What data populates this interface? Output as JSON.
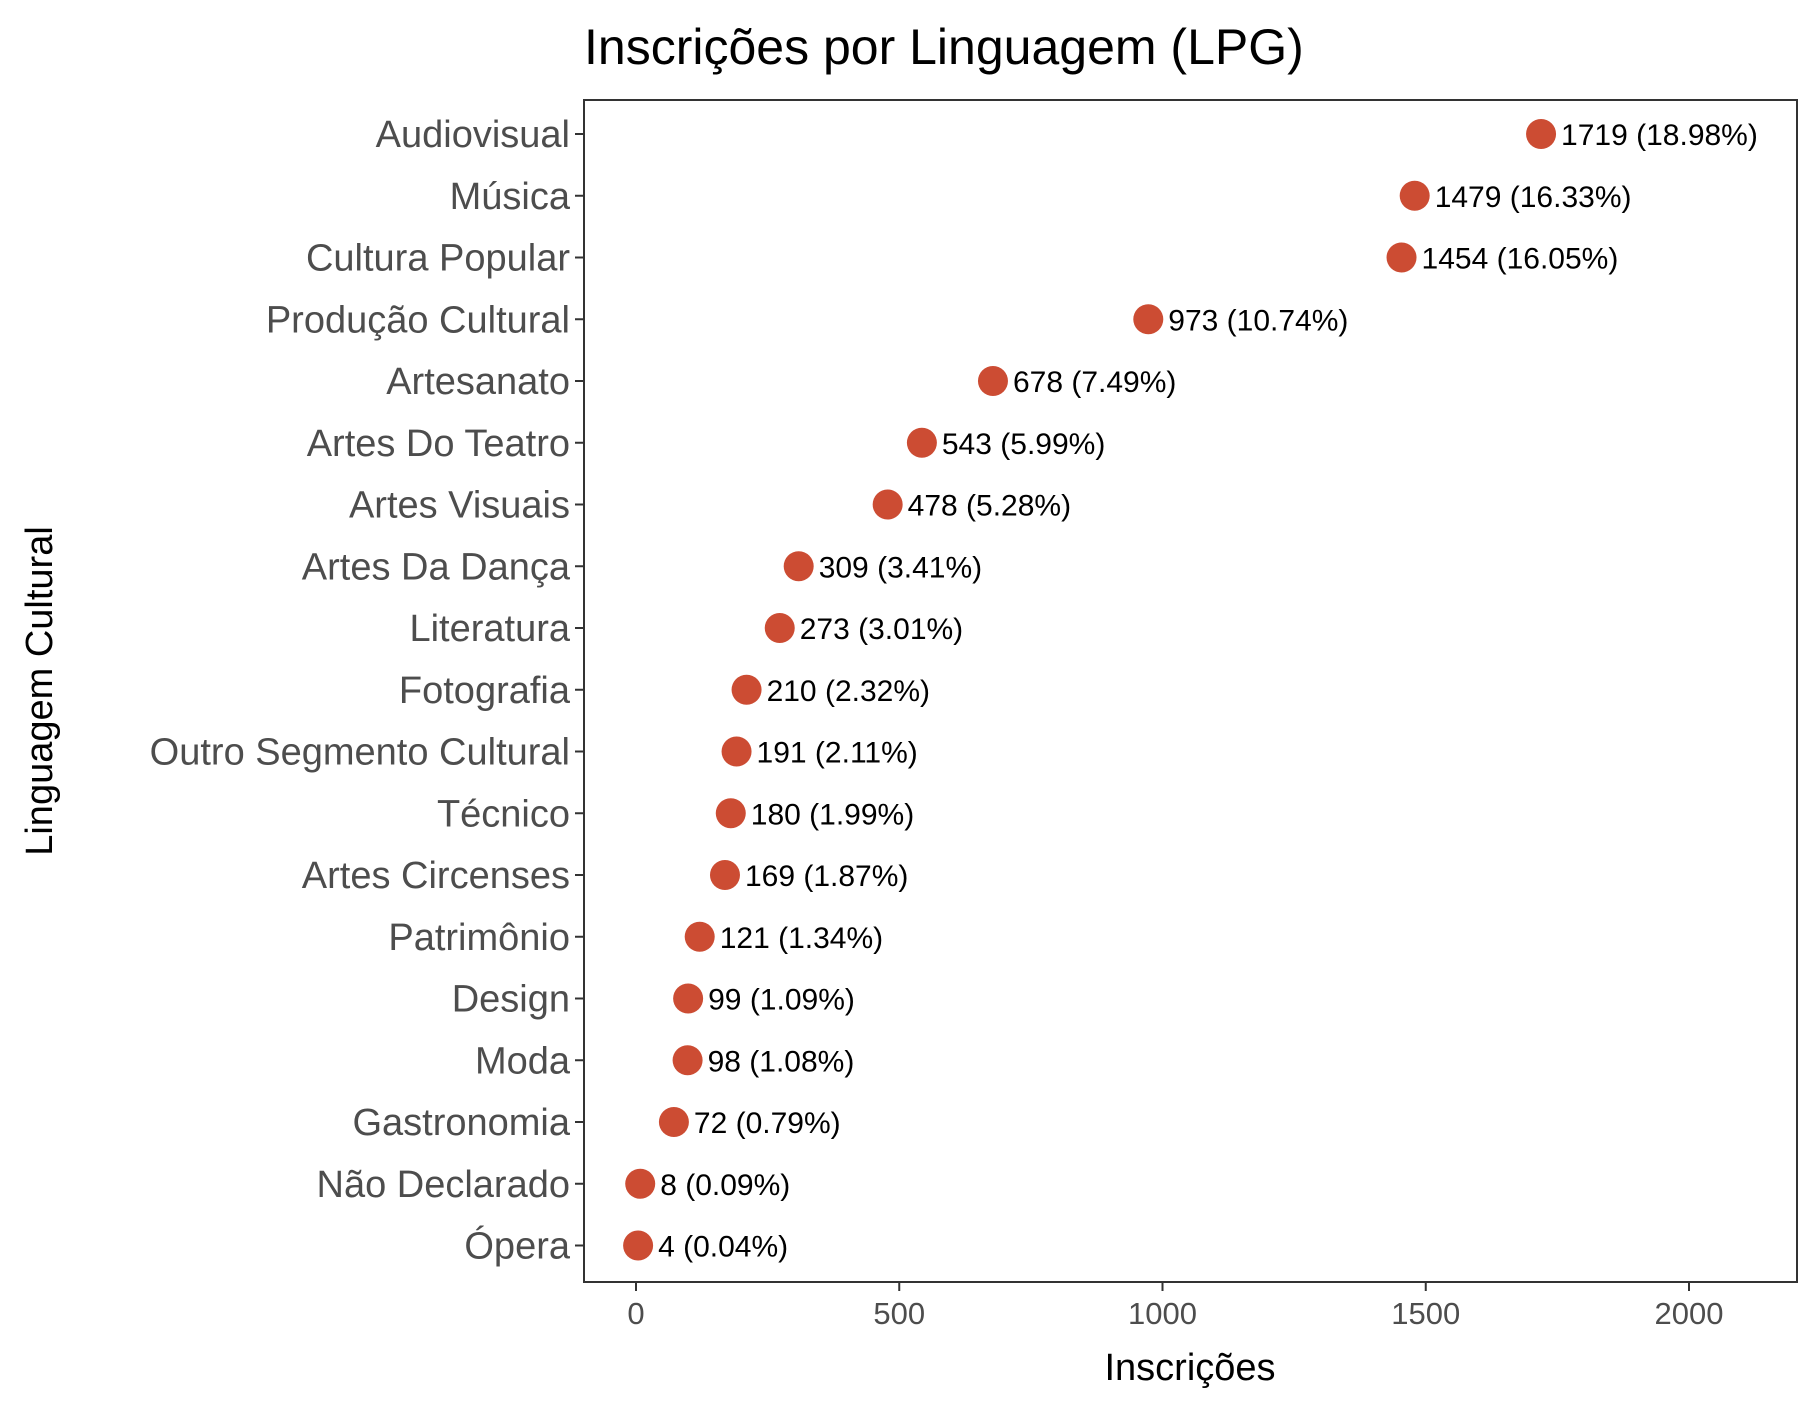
{
  "chart_data": {
    "type": "scatter",
    "title": "Inscrições por Linguagem (LPG)",
    "xlabel": "Inscrições",
    "ylabel": "Linguagem Cultural",
    "xlim": [
      -100,
      2200
    ],
    "x_ticks": [
      0,
      500,
      1000,
      1500,
      2000
    ],
    "grid": false,
    "point_color": "#cc4c33",
    "categories": [
      "Audiovisual",
      "Música",
      "Cultura Popular",
      "Produção Cultural",
      "Artesanato",
      "Artes Do Teatro",
      "Artes Visuais",
      "Artes Da Dança",
      "Literatura",
      "Fotografia",
      "Outro Segmento Cultural",
      "Técnico",
      "Artes Circenses",
      "Patrimônio",
      "Design",
      "Moda",
      "Gastronomia",
      "Não Declarado",
      "Ópera"
    ],
    "values": [
      1719,
      1479,
      1454,
      973,
      678,
      543,
      478,
      309,
      273,
      210,
      191,
      180,
      169,
      121,
      99,
      98,
      72,
      8,
      4
    ],
    "labels": [
      "1719 (18.98%)",
      "1479 (16.33%)",
      "1454 (16.05%)",
      "973 (10.74%)",
      "678 (7.49%)",
      "543 (5.99%)",
      "478 (5.28%)",
      "309 (3.41%)",
      "273 (3.01%)",
      "210 (2.32%)",
      "191 (2.11%)",
      "180 (1.99%)",
      "169 (1.87%)",
      "121 (1.34%)",
      "99 (1.09%)",
      "98 (1.08%)",
      "72 (0.79%)",
      "8 (0.09%)",
      "4 (0.04%)"
    ]
  }
}
